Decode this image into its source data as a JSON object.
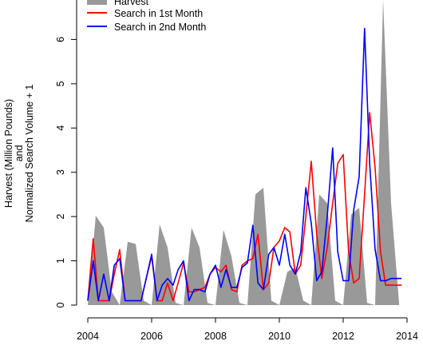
{
  "chart_data": {
    "type": "line",
    "title": "",
    "xlabel": "",
    "ylabel_lines": [
      "Harvest (Million Pounds)",
      "and",
      "Normalized Search Volume + 1"
    ],
    "xlim": [
      2003.6,
      2014.1
    ],
    "ylim": [
      -0.3,
      7.1
    ],
    "x_ticks": [
      2004,
      2006,
      2008,
      2010,
      2012,
      2014
    ],
    "y_ticks": [
      0,
      1,
      2,
      3,
      4,
      5,
      6,
      7
    ],
    "grid": false,
    "legend_position": "top-left",
    "series": [
      {
        "name": "Harvest",
        "kind": "area",
        "color": "#999999",
        "x": [
          2004.0,
          2004.25,
          2004.5,
          2004.75,
          2005.0,
          2005.25,
          2005.5,
          2005.75,
          2006.0,
          2006.25,
          2006.5,
          2006.75,
          2007.0,
          2007.25,
          2007.5,
          2007.75,
          2008.0,
          2008.25,
          2008.5,
          2008.75,
          2009.0,
          2009.25,
          2009.5,
          2009.75,
          2010.0,
          2010.25,
          2010.5,
          2010.75,
          2011.0,
          2011.25,
          2011.5,
          2011.75,
          2012.0,
          2012.25,
          2012.5,
          2012.75,
          2013.0,
          2013.25,
          2013.5,
          2013.75
        ],
        "values": [
          0.0,
          2.02,
          1.75,
          0.3,
          0.0,
          1.43,
          1.38,
          0.1,
          0.0,
          1.82,
          1.3,
          0.05,
          0.0,
          1.75,
          1.3,
          0.05,
          0.0,
          1.7,
          1.1,
          0.05,
          0.0,
          2.5,
          2.65,
          0.1,
          0.0,
          0.75,
          0.85,
          0.1,
          0.0,
          2.5,
          2.3,
          0.1,
          0.0,
          2.05,
          2.2,
          0.05,
          0.0,
          6.9,
          2.3,
          0.05
        ]
      },
      {
        "name": "Search in 1st Month",
        "kind": "line",
        "color": "#ff0000",
        "x": [
          2004.0,
          2004.17,
          2004.33,
          2004.5,
          2004.67,
          2004.83,
          2005.0,
          2005.17,
          2005.33,
          2005.5,
          2005.67,
          2005.83,
          2006.0,
          2006.17,
          2006.33,
          2006.5,
          2006.67,
          2006.83,
          2007.0,
          2007.17,
          2007.33,
          2007.5,
          2007.67,
          2007.83,
          2008.0,
          2008.17,
          2008.33,
          2008.5,
          2008.67,
          2008.83,
          2009.0,
          2009.17,
          2009.33,
          2009.5,
          2009.67,
          2009.83,
          2010.0,
          2010.17,
          2010.33,
          2010.5,
          2010.67,
          2010.83,
          2011.0,
          2011.17,
          2011.33,
          2011.5,
          2011.67,
          2011.83,
          2012.0,
          2012.17,
          2012.33,
          2012.5,
          2012.67,
          2012.83,
          2013.0,
          2013.17,
          2013.33,
          2013.5,
          2013.67,
          2013.83
        ],
        "values": [
          0.1,
          1.5,
          0.1,
          0.1,
          0.1,
          0.7,
          1.25,
          0.1,
          0.1,
          0.1,
          0.1,
          0.6,
          1.1,
          0.1,
          0.1,
          0.5,
          0.1,
          0.5,
          0.95,
          0.3,
          0.3,
          0.35,
          0.4,
          0.7,
          0.85,
          0.75,
          0.9,
          0.35,
          0.3,
          0.9,
          1.0,
          1.05,
          1.6,
          0.35,
          0.5,
          1.3,
          1.45,
          1.75,
          1.65,
          0.7,
          0.9,
          2.0,
          3.25,
          1.6,
          0.6,
          1.3,
          2.3,
          3.2,
          3.4,
          1.2,
          0.5,
          0.6,
          2.5,
          4.35,
          3.1,
          1.2,
          0.45,
          0.45,
          0.45,
          0.45
        ]
      },
      {
        "name": "Search in 2nd Month",
        "kind": "line",
        "color": "#0000ff",
        "x": [
          2004.0,
          2004.17,
          2004.33,
          2004.5,
          2004.67,
          2004.83,
          2005.0,
          2005.17,
          2005.33,
          2005.5,
          2005.67,
          2005.83,
          2006.0,
          2006.17,
          2006.33,
          2006.5,
          2006.67,
          2006.83,
          2007.0,
          2007.17,
          2007.33,
          2007.5,
          2007.67,
          2007.83,
          2008.0,
          2008.17,
          2008.33,
          2008.5,
          2008.67,
          2008.83,
          2009.0,
          2009.17,
          2009.33,
          2009.5,
          2009.67,
          2009.83,
          2010.0,
          2010.17,
          2010.33,
          2010.5,
          2010.67,
          2010.83,
          2011.0,
          2011.17,
          2011.33,
          2011.5,
          2011.67,
          2011.83,
          2012.0,
          2012.17,
          2012.33,
          2012.5,
          2012.67,
          2012.83,
          2013.0,
          2013.17,
          2013.33,
          2013.5,
          2013.67,
          2013.83
        ],
        "values": [
          0.1,
          1.0,
          0.1,
          0.7,
          0.1,
          0.9,
          1.05,
          0.1,
          0.1,
          0.1,
          0.1,
          0.6,
          1.15,
          0.1,
          0.45,
          0.6,
          0.45,
          0.8,
          1.0,
          0.1,
          0.35,
          0.35,
          0.3,
          0.7,
          0.9,
          0.4,
          0.8,
          0.4,
          0.4,
          0.85,
          0.95,
          1.8,
          0.5,
          0.35,
          1.15,
          1.3,
          0.9,
          1.6,
          0.9,
          0.7,
          1.2,
          2.65,
          1.85,
          0.55,
          0.75,
          2.0,
          3.55,
          1.2,
          0.55,
          0.55,
          2.15,
          2.9,
          6.25,
          3.2,
          1.25,
          0.55,
          0.55,
          0.6,
          0.6,
          0.6
        ]
      }
    ]
  }
}
